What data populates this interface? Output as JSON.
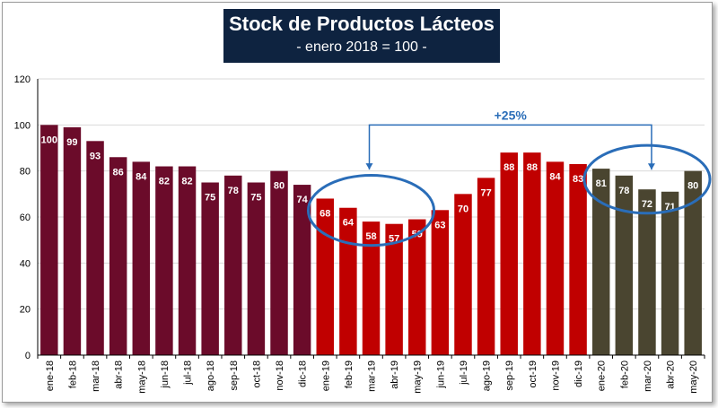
{
  "header": {
    "title": "Stock de Productos Lácteos",
    "subtitle": "- enero 2018 = 100 -"
  },
  "chart_data": {
    "type": "bar",
    "categories": [
      "ene-18",
      "feb-18",
      "mar-18",
      "abr-18",
      "may-18",
      "jun-18",
      "jul-18",
      "ago-18",
      "sep-18",
      "oct-18",
      "nov-18",
      "dic-18",
      "ene-19",
      "feb-19",
      "mar-19",
      "abr-19",
      "may-19",
      "jun-19",
      "jul-19",
      "ago-19",
      "sep-19",
      "oct-19",
      "nov-19",
      "dic-19",
      "ene-20",
      "feb-20",
      "mar-20",
      "abr-20",
      "may-20"
    ],
    "values": [
      100,
      99,
      93,
      86,
      84,
      82,
      82,
      75,
      78,
      75,
      80,
      74,
      68,
      64,
      58,
      57,
      59,
      63,
      70,
      77,
      88,
      88,
      84,
      83,
      81,
      78,
      72,
      71,
      80
    ],
    "data_labels": [
      "100",
      "99",
      "93",
      "86",
      "84",
      "82",
      "82",
      "75",
      "78",
      "75",
      "80",
      "74",
      "68",
      "64",
      "58",
      "57",
      "59",
      "63",
      "70",
      "77",
      "88",
      "88",
      "84",
      "83",
      "81",
      "78",
      "72",
      "71",
      "80"
    ],
    "bar_colors": [
      "#6b0b2a",
      "#6b0b2a",
      "#6b0b2a",
      "#6b0b2a",
      "#6b0b2a",
      "#6b0b2a",
      "#6b0b2a",
      "#6b0b2a",
      "#6b0b2a",
      "#6b0b2a",
      "#6b0b2a",
      "#6b0b2a",
      "#c00000",
      "#c00000",
      "#c00000",
      "#c00000",
      "#c00000",
      "#c00000",
      "#c00000",
      "#c00000",
      "#c00000",
      "#c00000",
      "#c00000",
      "#c00000",
      "#4a4530",
      "#4a4530",
      "#4a4530",
      "#4a4530",
      "#4a4530"
    ],
    "ylim": [
      0,
      120
    ],
    "yticks": [
      0,
      20,
      40,
      60,
      80,
      100,
      120
    ],
    "grid": true,
    "annotation": {
      "text": "+25%",
      "from_category": "mar-19",
      "to_category": "mar-20",
      "color": "#2a6db8",
      "highlight_groups": [
        [
          "ene-19",
          "feb-19",
          "mar-19",
          "abr-19",
          "may-19"
        ],
        [
          "ene-20",
          "feb-20",
          "mar-20",
          "abr-20",
          "may-20"
        ]
      ]
    }
  }
}
